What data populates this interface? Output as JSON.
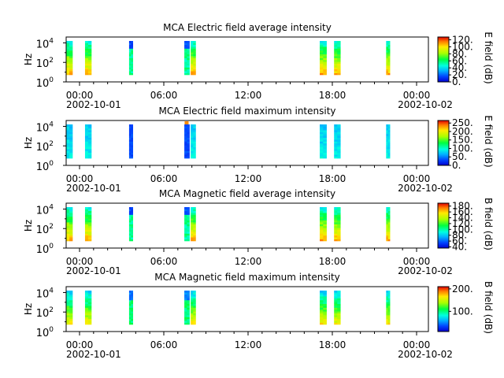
{
  "chart_data": [
    {
      "type": "heatmap",
      "title": "MCA  Electric field average intensity",
      "ylabel": "Hz",
      "y_scale": "log",
      "ylim_hz": [
        1,
        40000
      ],
      "y_ticks": [
        {
          "base": "10",
          "exp": "0"
        },
        {
          "base": "10",
          "exp": "2"
        },
        {
          "base": "10",
          "exp": "4"
        }
      ],
      "x_ticks": [
        "00:00",
        "06:00",
        "12:00",
        "18:00",
        "00:00"
      ],
      "x_dates": [
        "2002-10-01",
        "2002-10-02"
      ],
      "colorbar_label": "E field (dB)",
      "colorbar_ticks": [
        "0.",
        "20.",
        "40.",
        "60.",
        "80.",
        "100.",
        "120."
      ],
      "colorbar_range": [
        0,
        128
      ],
      "tick_values": [
        0,
        20,
        40,
        60,
        80,
        100,
        120
      ],
      "style": "avg"
    },
    {
      "type": "heatmap",
      "title": "MCA  Electric field maximum intensity",
      "ylabel": "Hz",
      "y_scale": "log",
      "ylim_hz": [
        1,
        40000
      ],
      "y_ticks": [
        {
          "base": "10",
          "exp": "0"
        },
        {
          "base": "10",
          "exp": "2"
        },
        {
          "base": "10",
          "exp": "4"
        }
      ],
      "x_ticks": [
        "00:00",
        "06:00",
        "12:00",
        "18:00",
        "00:00"
      ],
      "x_dates": [
        "2002-10-01",
        "2002-10-02"
      ],
      "colorbar_label": "E field (dB)",
      "colorbar_ticks": [
        "0.",
        "50.",
        "100.",
        "150.",
        "200.",
        "250."
      ],
      "colorbar_range": [
        0,
        265
      ],
      "tick_values": [
        0,
        50,
        100,
        150,
        200,
        250
      ],
      "style": "emax"
    },
    {
      "type": "heatmap",
      "title": "MCA  Magnetic field average intensity",
      "ylabel": "Hz",
      "y_scale": "log",
      "ylim_hz": [
        1,
        40000
      ],
      "y_ticks": [
        {
          "base": "10",
          "exp": "0"
        },
        {
          "base": "10",
          "exp": "2"
        },
        {
          "base": "10",
          "exp": "4"
        }
      ],
      "x_ticks": [
        "00:00",
        "06:00",
        "12:00",
        "18:00",
        "00:00"
      ],
      "x_dates": [
        "2002-10-01",
        "2002-10-02"
      ],
      "colorbar_label": "B field (dB)",
      "colorbar_ticks": [
        "40.",
        "60.",
        "80.",
        "100.",
        "120.",
        "140.",
        "160.",
        "180."
      ],
      "colorbar_range": [
        36,
        190
      ],
      "tick_values": [
        40,
        60,
        80,
        100,
        120,
        140,
        160,
        180
      ],
      "style": "avg"
    },
    {
      "type": "heatmap",
      "title": "MCA  Magnetic field maximum intensity",
      "ylabel": "Hz",
      "y_scale": "log",
      "ylim_hz": [
        1,
        40000
      ],
      "y_ticks": [
        {
          "base": "10",
          "exp": "0"
        },
        {
          "base": "10",
          "exp": "2"
        },
        {
          "base": "10",
          "exp": "4"
        }
      ],
      "x_ticks": [
        "00:00",
        "06:00",
        "12:00",
        "18:00",
        "00:00"
      ],
      "x_dates": [
        "2002-10-01",
        "2002-10-02"
      ],
      "colorbar_label": "B field (dB)",
      "colorbar_ticks": [
        "100.",
        "200."
      ],
      "colorbar_range": [
        10,
        210
      ],
      "tick_values": [
        100,
        200
      ],
      "style": "bmax"
    }
  ],
  "observation_windows_hours": [
    [
      0.0,
      0.42
    ],
    [
      1.25,
      1.67
    ],
    [
      4.17,
      4.42
    ],
    [
      7.83,
      8.17
    ],
    [
      8.25,
      8.58
    ],
    [
      16.8,
      17.25
    ],
    [
      17.75,
      18.17
    ],
    [
      21.2,
      21.45
    ]
  ]
}
